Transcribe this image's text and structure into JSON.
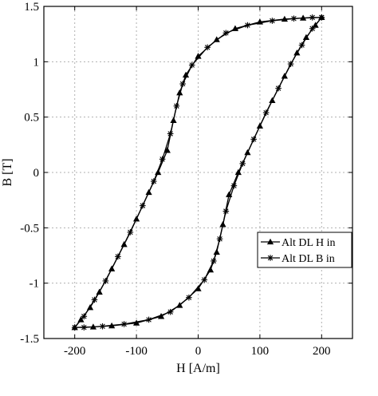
{
  "chart_data": {
    "type": "line",
    "title": "",
    "xlabel": "H [A/m]",
    "ylabel": "B [T]",
    "xlim": [
      -250,
      250
    ],
    "ylim": [
      -1.5,
      1.5
    ],
    "xticks": [
      "-200",
      "-100",
      "0",
      "100",
      "200"
    ],
    "xtick_values": [
      -200,
      -100,
      0,
      100,
      200
    ],
    "yticks": [
      "-1.5",
      "-1",
      "-0.5",
      "0",
      "0.5",
      "1",
      "1.5"
    ],
    "ytick_values": [
      -1.5,
      -1,
      -0.5,
      0,
      0.5,
      1,
      1.5
    ],
    "grid": true,
    "legend_position": "lower-right",
    "colors": {
      "line": "#000000",
      "grid": "#b0b0b0"
    },
    "series": [
      {
        "name": "Alt DL H in",
        "marker": "triangle",
        "points": [
          [
            200,
            1.4
          ],
          [
            190,
            1.33
          ],
          [
            175,
            1.22
          ],
          [
            160,
            1.08
          ],
          [
            140,
            0.87
          ],
          [
            120,
            0.65
          ],
          [
            100,
            0.42
          ],
          [
            80,
            0.18
          ],
          [
            65,
            0.0
          ],
          [
            50,
            -0.2
          ],
          [
            40,
            -0.47
          ],
          [
            30,
            -0.72
          ],
          [
            20,
            -0.88
          ],
          [
            0,
            -1.05
          ],
          [
            -30,
            -1.2
          ],
          [
            -60,
            -1.3
          ],
          [
            -100,
            -1.36
          ],
          [
            -140,
            -1.385
          ],
          [
            -170,
            -1.395
          ],
          [
            -200,
            -1.4
          ],
          [
            -190,
            -1.33
          ],
          [
            -175,
            -1.22
          ],
          [
            -160,
            -1.08
          ],
          [
            -140,
            -0.87
          ],
          [
            -120,
            -0.65
          ],
          [
            -100,
            -0.42
          ],
          [
            -80,
            -0.18
          ],
          [
            -65,
            0.0
          ],
          [
            -50,
            0.2
          ],
          [
            -40,
            0.47
          ],
          [
            -30,
            0.72
          ],
          [
            -20,
            0.88
          ],
          [
            0,
            1.05
          ],
          [
            30,
            1.2
          ],
          [
            60,
            1.3
          ],
          [
            100,
            1.36
          ],
          [
            140,
            1.385
          ],
          [
            170,
            1.395
          ],
          [
            200,
            1.4
          ]
        ]
      },
      {
        "name": "Alt DL B in",
        "marker": "asterisk",
        "points": [
          [
            200,
            1.4
          ],
          [
            185,
            1.3
          ],
          [
            168,
            1.15
          ],
          [
            150,
            0.98
          ],
          [
            130,
            0.76
          ],
          [
            110,
            0.54
          ],
          [
            90,
            0.3
          ],
          [
            72,
            0.08
          ],
          [
            58,
            -0.12
          ],
          [
            45,
            -0.35
          ],
          [
            35,
            -0.6
          ],
          [
            25,
            -0.8
          ],
          [
            10,
            -0.97
          ],
          [
            -15,
            -1.13
          ],
          [
            -45,
            -1.26
          ],
          [
            -80,
            -1.33
          ],
          [
            -120,
            -1.37
          ],
          [
            -155,
            -1.39
          ],
          [
            -185,
            -1.4
          ],
          [
            -200,
            -1.4
          ],
          [
            -185,
            -1.3
          ],
          [
            -168,
            -1.15
          ],
          [
            -150,
            -0.98
          ],
          [
            -130,
            -0.76
          ],
          [
            -110,
            -0.54
          ],
          [
            -90,
            -0.3
          ],
          [
            -72,
            -0.08
          ],
          [
            -58,
            0.12
          ],
          [
            -45,
            0.35
          ],
          [
            -35,
            0.6
          ],
          [
            -25,
            0.8
          ],
          [
            -10,
            0.97
          ],
          [
            15,
            1.13
          ],
          [
            45,
            1.26
          ],
          [
            80,
            1.33
          ],
          [
            120,
            1.37
          ],
          [
            155,
            1.39
          ],
          [
            185,
            1.4
          ],
          [
            200,
            1.4
          ]
        ]
      }
    ]
  }
}
